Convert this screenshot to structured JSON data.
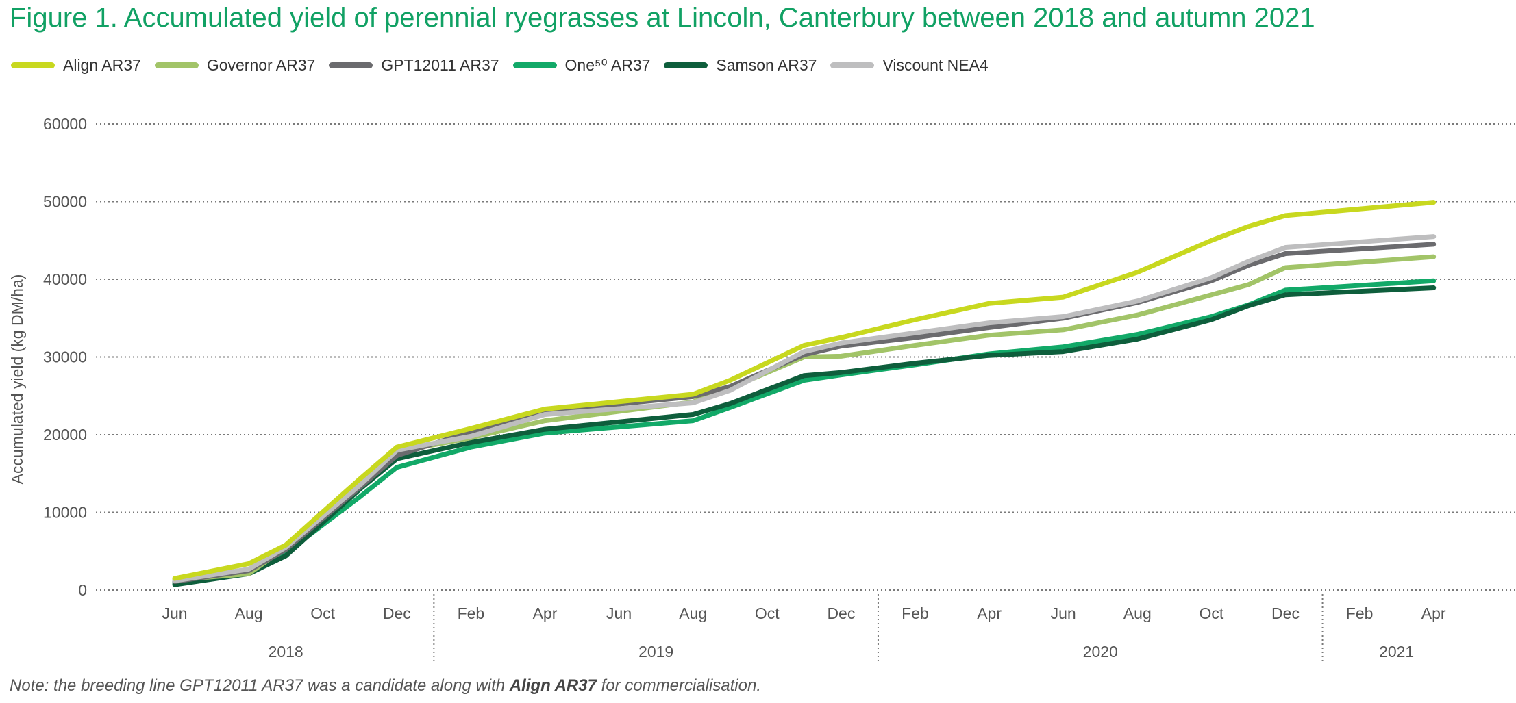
{
  "title": "Figure 1. Accumulated yield of perennial ryegrasses at Lincoln, Canterbury between 2018 and autumn 2021",
  "note": {
    "pre": "Note: the breeding line GPT12011 AR37 was a candidate along with ",
    "bold": "Align AR37",
    "post": " for commercialisation."
  },
  "chart_data": {
    "type": "line",
    "title": "Figure 1. Accumulated yield of perennial ryegrasses at Lincoln, Canterbury between 2018 and autumn 2021",
    "ylabel": "Accumulated yield (kg DM/ha)",
    "xlabel": "",
    "ylim": [
      0,
      60000
    ],
    "yticks": [
      "0",
      "10000",
      "20000",
      "30000",
      "40000",
      "50000",
      "60000"
    ],
    "grid": true,
    "legend_position": "top-left",
    "month_ticks": [
      "Jun",
      "Aug",
      "Oct",
      "Dec",
      "Feb",
      "Apr",
      "Jun",
      "Aug",
      "Oct",
      "Dec",
      "Feb",
      "Apr",
      "Jun",
      "Aug",
      "Oct",
      "Dec",
      "Feb",
      "Apr"
    ],
    "year_groups": [
      {
        "label": "2018",
        "start": 0,
        "end": 3
      },
      {
        "label": "2019",
        "start": 4,
        "end": 9
      },
      {
        "label": "2020",
        "start": 10,
        "end": 15
      },
      {
        "label": "2021",
        "start": 16,
        "end": 17
      }
    ],
    "x": [
      "2018-06",
      "2018-08",
      "2018-09",
      "2018-11",
      "2018-12",
      "2019-02",
      "2019-04",
      "2019-08",
      "2019-09",
      "2019-11",
      "2019-12",
      "2020-02",
      "2020-04",
      "2020-06",
      "2020-08",
      "2020-10",
      "2020-11",
      "2020-12",
      "2021-04"
    ],
    "series": [
      {
        "name": "Align AR37",
        "color": "#c8d81f",
        "values": [
          1500,
          3400,
          5800,
          14300,
          18400,
          20800,
          23300,
          25200,
          27000,
          31500,
          32500,
          34800,
          36900,
          37700,
          40900,
          45000,
          46800,
          48200,
          49900
        ]
      },
      {
        "name": "Governor AR37",
        "color": "#a2c468",
        "values": [
          1300,
          2100,
          5500,
          13700,
          17800,
          19600,
          21800,
          24200,
          26000,
          30000,
          30100,
          31500,
          32800,
          33500,
          35400,
          38000,
          39300,
          41500,
          42900
        ]
      },
      {
        "name": "GPT12011 AR37",
        "color": "#6b6b6e",
        "values": [
          1100,
          2500,
          5200,
          13200,
          17300,
          20400,
          23000,
          24900,
          26200,
          30300,
          31400,
          32500,
          33800,
          35000,
          37000,
          39800,
          41800,
          43300,
          44500
        ]
      },
      {
        "name": "One⁵⁰ AR37",
        "color": "#12a968",
        "values": [
          900,
          2300,
          4800,
          12000,
          15800,
          18400,
          20200,
          21800,
          23500,
          27000,
          27700,
          29000,
          30400,
          31300,
          32900,
          35200,
          36700,
          38600,
          39800
        ]
      },
      {
        "name": "Samson AR37",
        "color": "#0e5e3c",
        "values": [
          700,
          2100,
          4400,
          13000,
          16900,
          19000,
          20700,
          22600,
          24000,
          27600,
          28000,
          29200,
          30200,
          30700,
          32300,
          34800,
          36600,
          38000,
          38900
        ]
      },
      {
        "name": "Viscount NEA4",
        "color": "#bebebf",
        "values": [
          1200,
          2700,
          5500,
          13500,
          18000,
          19800,
          22600,
          24100,
          25700,
          30700,
          31800,
          33100,
          34400,
          35200,
          37200,
          40200,
          42300,
          44100,
          45500
        ]
      }
    ]
  }
}
